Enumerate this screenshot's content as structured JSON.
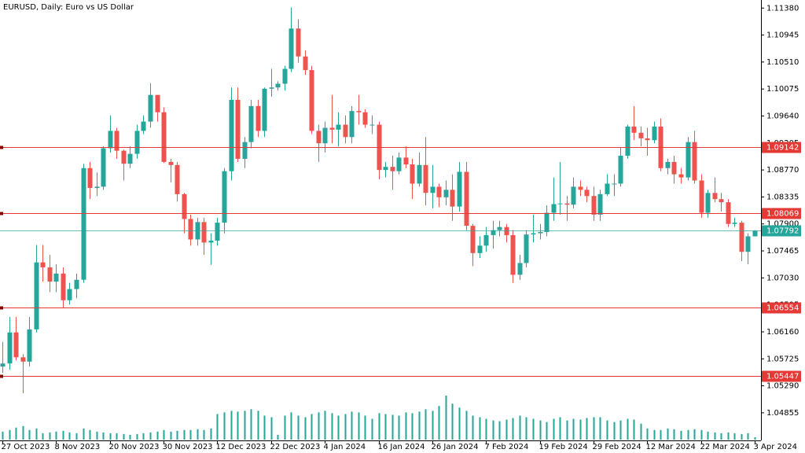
{
  "chart_data": {
    "type": "candlestick",
    "title": "EURUSD, Daily:  Euro vs US Dollar",
    "categories": [
      "27 Oct 2023",
      null,
      null,
      null,
      null,
      null,
      null,
      null,
      "8 Nov 2023",
      null,
      null,
      null,
      null,
      null,
      null,
      null,
      "20 Nov 2023",
      null,
      null,
      null,
      null,
      null,
      null,
      null,
      "30 Nov 2023",
      null,
      null,
      null,
      null,
      null,
      null,
      null,
      "12 Dec 2023",
      null,
      null,
      null,
      null,
      null,
      null,
      null,
      "22 Dec 2023",
      null,
      null,
      null,
      null,
      null,
      null,
      null,
      "4 Jan 2024",
      null,
      null,
      null,
      null,
      null,
      null,
      null,
      "16 Jan 2024",
      null,
      null,
      null,
      null,
      null,
      null,
      null,
      "26 Jan 2024",
      null,
      null,
      null,
      null,
      null,
      null,
      null,
      "7 Feb 2024",
      null,
      null,
      null,
      null,
      null,
      null,
      null,
      "19 Feb 2024",
      null,
      null,
      null,
      null,
      null,
      null,
      null,
      "29 Feb 2024",
      null,
      null,
      null,
      null,
      null,
      null,
      null,
      "12 Mar 2024",
      null,
      null,
      null,
      null,
      null,
      null,
      null,
      "22 Mar 2024",
      null,
      null,
      null,
      null,
      null,
      null,
      null,
      "3 Apr 2024"
    ],
    "open": [
      1.056,
      1.0565,
      1.0615,
      1.0575,
      1.0568,
      1.062,
      1.0728,
      1.072,
      1.0697,
      1.071,
      1.0667,
      1.0685,
      1.07,
      1.088,
      1.0848,
      1.085,
      1.0912,
      1.094,
      1.0908,
      1.0887,
      1.0903,
      1.094,
      1.0955,
      1.0998,
      1.097,
      1.089,
      1.0885,
      1.0838,
      1.0798,
      1.0765,
      1.0793,
      1.076,
      1.0763,
      1.0792,
      1.0875,
      1.099,
      1.0895,
      1.0922,
      1.098,
      1.094,
      1.1008,
      1.101,
      1.1016,
      1.104,
      1.1105,
      1.106,
      1.1038,
      1.094,
      1.092,
      1.0945,
      1.0942,
      1.095,
      1.093,
      1.0972,
      1.097,
      1.095,
      1.095,
      1.0877,
      1.0882,
      1.0875,
      1.0897,
      1.0886,
      1.0855,
      1.0885,
      1.084,
      1.085,
      1.0833,
      1.0845,
      1.0818,
      1.0874,
      1.0787,
      1.0743,
      1.0755,
      1.0772,
      1.078,
      1.0785,
      1.0772,
      1.0708,
      1.0727,
      1.0773,
      1.0775,
      1.0777,
      1.0808,
      1.0822,
      1.0823,
      1.0821,
      1.085,
      1.0845,
      1.0835,
      1.0805,
      1.0838,
      1.0855,
      1.0855,
      1.09,
      1.0947,
      1.0937,
      1.0928,
      1.0925,
      1.0947,
      1.088,
      1.089,
      1.087,
      1.0865,
      1.0922,
      1.086,
      1.0808,
      1.084,
      1.083,
      1.0825,
      1.079,
      1.0792,
      1.0745,
      1.077
    ],
    "high": [
      1.06,
      1.064,
      1.064,
      1.058,
      1.064,
      1.0756,
      1.0756,
      1.074,
      1.0725,
      1.072,
      1.0695,
      1.071,
      1.0887,
      1.089,
      1.0873,
      1.0915,
      1.0965,
      1.0945,
      1.091,
      1.0915,
      1.095,
      1.0965,
      1.1017,
      1.0995,
      1.0978,
      1.0895,
      1.089,
      1.084,
      1.0805,
      1.08,
      1.08,
      1.0775,
      1.08,
      1.088,
      1.101,
      1.101,
      1.093,
      1.099,
      1.099,
      1.101,
      1.104,
      1.102,
      1.1045,
      1.1139,
      1.112,
      1.107,
      1.1045,
      1.095,
      1.0955,
      1.0998,
      1.097,
      1.0965,
      1.098,
      1.0998,
      1.0975,
      1.0965,
      1.0955,
      1.089,
      1.09,
      1.0905,
      1.0915,
      1.0895,
      1.0905,
      1.093,
      1.0885,
      1.0855,
      1.086,
      1.087,
      1.089,
      1.089,
      1.079,
      1.077,
      1.0785,
      1.0795,
      1.0795,
      1.079,
      1.078,
      1.074,
      1.078,
      1.0805,
      1.079,
      1.082,
      1.0865,
      1.089,
      1.0835,
      1.0865,
      1.086,
      1.085,
      1.085,
      1.0845,
      1.087,
      1.087,
      1.0913,
      1.095,
      1.098,
      1.0947,
      1.0945,
      1.0955,
      1.096,
      1.0895,
      1.09,
      1.088,
      1.093,
      1.094,
      1.087,
      1.0845,
      1.0865,
      1.084,
      1.083,
      1.08,
      1.0795,
      1.0775,
      1.078
    ],
    "low": [
      1.055,
      1.0555,
      1.057,
      1.0517,
      1.056,
      1.0615,
      1.0697,
      1.068,
      1.068,
      1.0655,
      1.066,
      1.067,
      1.0695,
      1.083,
      1.0835,
      1.0845,
      1.0905,
      1.0895,
      1.086,
      1.088,
      1.0895,
      1.0935,
      1.0945,
      1.0955,
      1.0888,
      1.0857,
      1.0826,
      1.0775,
      1.0755,
      1.0755,
      1.074,
      1.0724,
      1.0755,
      1.0775,
      1.086,
      1.089,
      1.088,
      1.0912,
      1.093,
      1.093,
      1.0995,
      1.1005,
      1.1005,
      1.1035,
      1.105,
      1.103,
      1.0935,
      1.089,
      1.0905,
      1.092,
      1.0915,
      1.092,
      1.092,
      1.095,
      1.0945,
      1.0935,
      1.0862,
      1.0865,
      1.0845,
      1.087,
      1.088,
      1.083,
      1.085,
      1.082,
      1.0815,
      1.0817,
      1.082,
      1.0795,
      1.081,
      1.078,
      1.0722,
      1.0735,
      1.0745,
      1.075,
      1.077,
      1.076,
      1.0695,
      1.07,
      1.072,
      1.076,
      1.0765,
      1.077,
      1.0795,
      1.0805,
      1.0795,
      1.0815,
      1.0835,
      1.0825,
      1.0795,
      1.0795,
      1.0835,
      1.0835,
      1.085,
      1.0895,
      1.0925,
      1.0915,
      1.09,
      1.092,
      1.0875,
      1.087,
      1.0855,
      1.0855,
      1.086,
      1.0855,
      1.08,
      1.08,
      1.0825,
      1.081,
      1.0785,
      1.0785,
      1.073,
      1.0725,
      1.077
    ],
    "close": [
      1.0565,
      1.0615,
      1.0575,
      1.0568,
      1.062,
      1.0728,
      1.072,
      1.0697,
      1.071,
      1.0667,
      1.0685,
      1.07,
      1.088,
      1.0848,
      1.085,
      1.0912,
      1.094,
      1.0908,
      1.0887,
      1.0903,
      1.094,
      1.0955,
      1.0998,
      1.097,
      1.089,
      1.0885,
      1.0838,
      1.0798,
      1.0765,
      1.0793,
      1.076,
      1.0763,
      1.0792,
      1.0875,
      1.099,
      1.0895,
      1.0922,
      1.098,
      1.094,
      1.1008,
      1.101,
      1.1016,
      1.104,
      1.1105,
      1.106,
      1.1038,
      1.094,
      1.092,
      1.0945,
      1.0942,
      1.095,
      1.093,
      1.0972,
      1.097,
      1.095,
      1.095,
      1.0877,
      1.0882,
      1.0875,
      1.0897,
      1.0886,
      1.0855,
      1.0885,
      1.084,
      1.085,
      1.0833,
      1.0845,
      1.0818,
      1.0874,
      1.0787,
      1.0743,
      1.0755,
      1.0772,
      1.078,
      1.0785,
      1.0772,
      1.0708,
      1.0727,
      1.0773,
      1.0775,
      1.0777,
      1.0808,
      1.0822,
      1.0823,
      1.0821,
      1.085,
      1.0845,
      1.0835,
      1.0805,
      1.0838,
      1.0855,
      1.0855,
      1.09,
      1.0947,
      1.0937,
      1.0928,
      1.0925,
      1.0947,
      1.088,
      1.089,
      1.087,
      1.0865,
      1.0922,
      1.086,
      1.0808,
      1.084,
      1.083,
      1.0825,
      1.079,
      1.0792,
      1.0745,
      1.077,
      1.0779
    ],
    "volume": [
      10,
      12,
      15,
      17,
      12,
      14,
      8,
      9,
      10,
      11,
      9,
      8,
      14,
      12,
      10,
      9,
      8,
      8,
      7,
      6,
      7,
      8,
      9,
      10,
      12,
      10,
      11,
      12,
      12,
      13,
      12,
      14,
      32,
      34,
      36,
      35,
      36,
      38,
      36,
      30,
      28,
      6,
      30,
      34,
      30,
      28,
      32,
      34,
      36,
      33,
      30,
      32,
      35,
      34,
      30,
      26,
      33,
      32,
      31,
      30,
      34,
      33,
      35,
      38,
      36,
      42,
      55,
      45,
      40,
      36,
      30,
      28,
      26,
      24,
      23,
      25,
      27,
      30,
      28,
      26,
      24,
      22,
      26,
      28,
      24,
      26,
      25,
      27,
      28,
      28,
      24,
      22,
      24,
      26,
      25,
      20,
      14,
      12,
      12,
      14,
      13,
      11,
      12,
      13,
      12,
      10,
      9,
      8,
      9,
      8,
      7,
      8,
      3
    ],
    "up_color": "#26a69a",
    "down_color": "#ef5350",
    "volume_color": "#26a69a",
    "ylim": [
      1.0441,
      1.1151
    ],
    "yticks": [
      {
        "value": 1.1138,
        "label": "1.11380"
      },
      {
        "value": 1.10945,
        "label": "1.10945"
      },
      {
        "value": 1.1051,
        "label": "1.10510"
      },
      {
        "value": 1.10075,
        "label": "1.10075"
      },
      {
        "value": 1.0964,
        "label": "1.09640"
      },
      {
        "value": 1.09205,
        "label": "1.09205"
      },
      {
        "value": 1.0877,
        "label": "1.08770"
      },
      {
        "value": 1.08335,
        "label": "1.08335"
      },
      {
        "value": 1.079,
        "label": "1.07900"
      },
      {
        "value": 1.07465,
        "label": "1.07465"
      },
      {
        "value": 1.0703,
        "label": "1.07030"
      },
      {
        "value": 1.06595,
        "label": "1.06595"
      },
      {
        "value": 1.0616,
        "label": "1.06160"
      },
      {
        "value": 1.05725,
        "label": "1.05725"
      },
      {
        "value": 1.0529,
        "label": "1.05290"
      },
      {
        "value": 1.04855,
        "label": "1.04855"
      }
    ],
    "levels": [
      {
        "value": 1.09142,
        "label": "1.09142"
      },
      {
        "value": 1.08069,
        "label": "1.08069"
      },
      {
        "value": 1.06554,
        "label": "1.06554"
      },
      {
        "value": 1.05447,
        "label": "1.05447"
      }
    ],
    "level_color": "#e53935",
    "current_price": {
      "value": 1.07792,
      "label": "1.07792"
    },
    "current_color": "#26a69a",
    "grid": false
  }
}
